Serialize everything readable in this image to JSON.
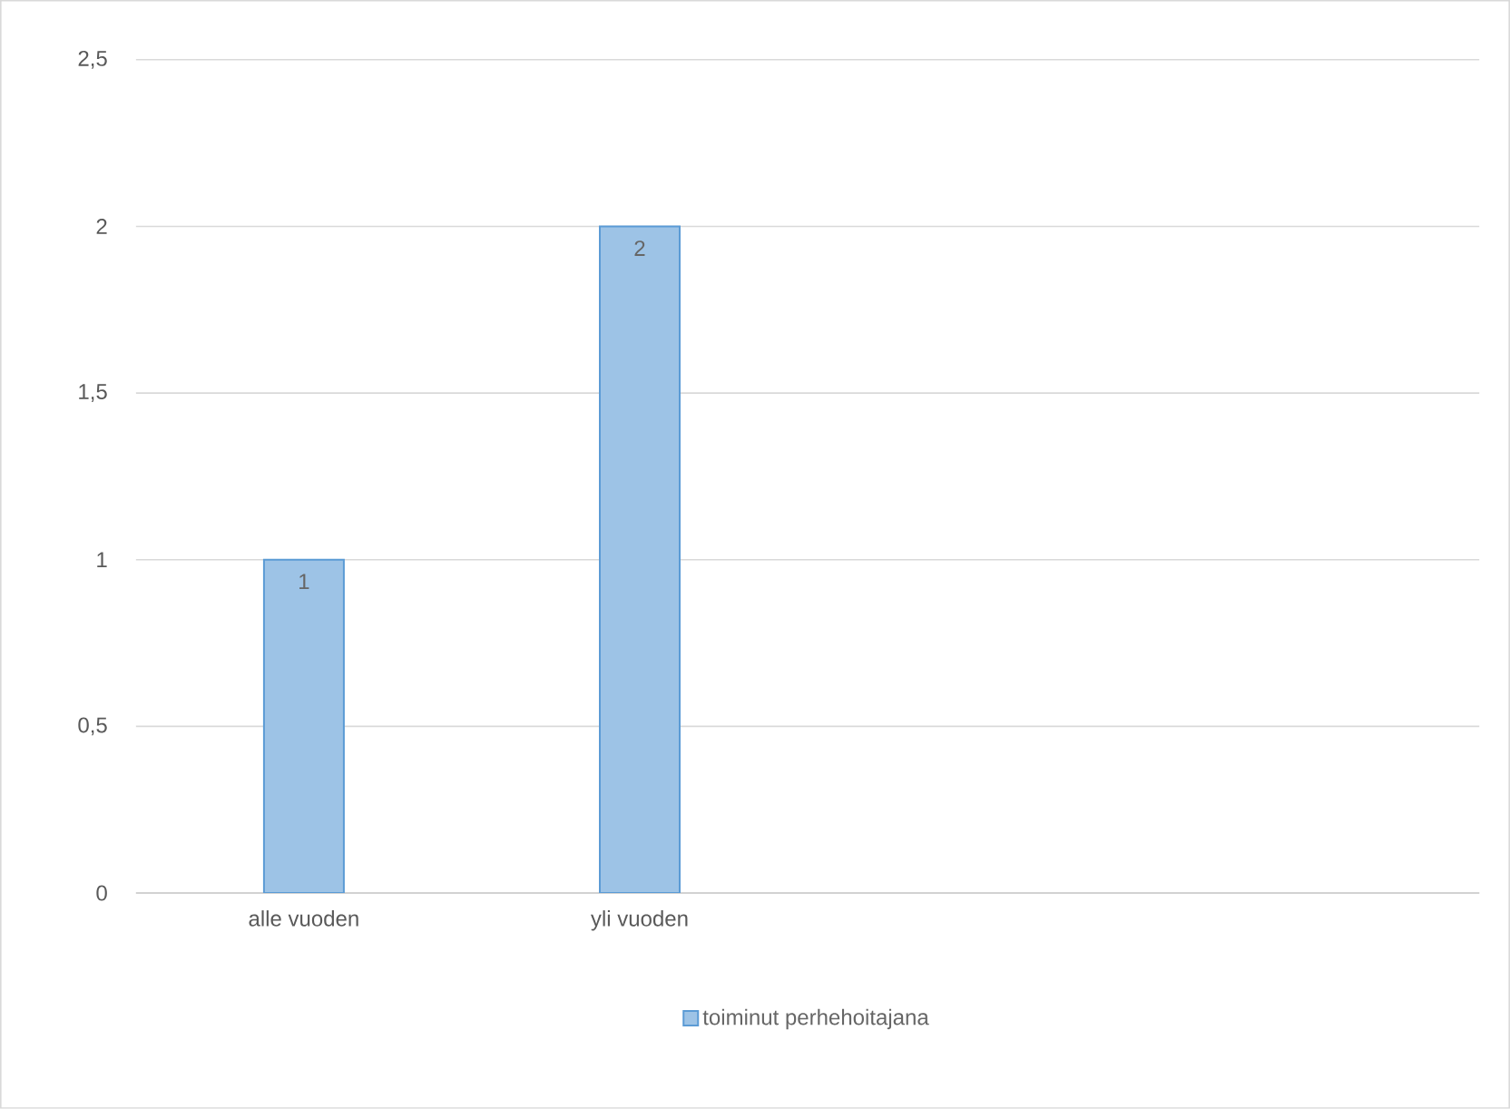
{
  "chart_data": {
    "type": "bar",
    "categories": [
      "alle vuoden",
      "yli vuoden",
      null,
      null
    ],
    "series": [
      {
        "name": "toiminut perhehoitajana",
        "color": "#9dc3e6",
        "values": [
          1,
          2,
          null,
          null
        ]
      }
    ],
    "ylim": [
      0,
      2.5
    ],
    "yticks": [
      0,
      {
        "value": 0.5,
        "label": "0,5"
      },
      1,
      {
        "value": 1.5,
        "label": "1,5"
      },
      2,
      {
        "value": 2.5,
        "label": "2,5"
      }
    ],
    "grid": "y",
    "legend": "bottom",
    "data_labels": true
  }
}
